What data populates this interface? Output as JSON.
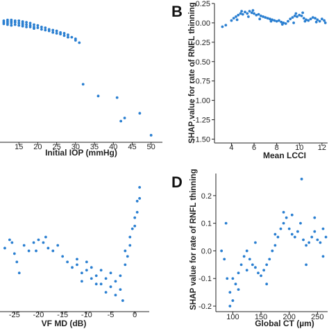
{
  "point_color": "#2a7fd1",
  "chart_data": [
    {
      "id": "A",
      "type": "scatter",
      "panel_letter": "",
      "xlabel": "Initial IOP (mmHg)",
      "ylabel": "",
      "xlim": [
        10,
        53
      ],
      "ylim": [
        -1.52,
        0.25
      ],
      "xticks": [
        15,
        20,
        25,
        30,
        35,
        40,
        45,
        50
      ],
      "yticks": [],
      "points": [
        [
          11,
          0.03
        ],
        [
          11,
          0.01
        ],
        [
          11,
          -0.01
        ],
        [
          12,
          0.04
        ],
        [
          12,
          0.02
        ],
        [
          12,
          0.0
        ],
        [
          12,
          -0.02
        ],
        [
          13,
          0.04
        ],
        [
          13,
          0.02
        ],
        [
          13,
          0.0
        ],
        [
          13,
          -0.03
        ],
        [
          14,
          0.03
        ],
        [
          14,
          0.01
        ],
        [
          14,
          -0.02
        ],
        [
          15,
          0.03
        ],
        [
          15,
          0.0
        ],
        [
          15,
          -0.03
        ],
        [
          16,
          0.02
        ],
        [
          16,
          0.0
        ],
        [
          16,
          -0.02
        ],
        [
          16,
          -0.04
        ],
        [
          17,
          0.01
        ],
        [
          17,
          -0.02
        ],
        [
          17,
          -0.05
        ],
        [
          18,
          0.0
        ],
        [
          18,
          -0.03
        ],
        [
          18,
          -0.05
        ],
        [
          19,
          -0.02
        ],
        [
          19,
          -0.05
        ],
        [
          19,
          -0.07
        ],
        [
          20,
          -0.03
        ],
        [
          20,
          -0.06
        ],
        [
          21,
          -0.05
        ],
        [
          21,
          -0.08
        ],
        [
          22,
          -0.06
        ],
        [
          22,
          -0.09
        ],
        [
          23,
          -0.08
        ],
        [
          23,
          -0.1
        ],
        [
          24,
          -0.09
        ],
        [
          24,
          -0.12
        ],
        [
          25,
          -0.1
        ],
        [
          25,
          -0.13
        ],
        [
          26,
          -0.12
        ],
        [
          26,
          -0.14
        ],
        [
          27,
          -0.13
        ],
        [
          27,
          -0.16
        ],
        [
          28,
          -0.15
        ],
        [
          28,
          -0.18
        ],
        [
          29,
          -0.18
        ],
        [
          30,
          -0.2
        ],
        [
          30,
          -0.22
        ],
        [
          31,
          -0.25
        ],
        [
          32,
          -0.78
        ],
        [
          36,
          -0.93
        ],
        [
          41,
          -0.95
        ],
        [
          42,
          -1.25
        ],
        [
          43,
          -1.21
        ],
        [
          47,
          -1.15
        ],
        [
          50,
          -1.43
        ]
      ]
    },
    {
      "id": "B",
      "type": "scatter",
      "panel_letter": "B",
      "xlabel": "Mean LCCI",
      "ylabel": "SHAP value for rate of RNFL thinning",
      "xlim": [
        2.5,
        12.5
      ],
      "ylim": [
        -1.55,
        0.25
      ],
      "xticks": [
        4,
        6,
        8,
        10,
        12
      ],
      "yticks": [
        0.25,
        0.0,
        -0.25,
        -0.5,
        -0.75,
        -1.0,
        -1.25,
        -1.5
      ],
      "ytick_labels": [
        "0.25",
        "0.00",
        "-0.25",
        "-0.50",
        "-0.75",
        "-1.00",
        "-1.25",
        "-1.50"
      ],
      "points": [
        [
          3.2,
          -0.05
        ],
        [
          3.5,
          -0.03
        ],
        [
          4.0,
          0.03
        ],
        [
          4.2,
          0.06
        ],
        [
          4.4,
          0.08
        ],
        [
          4.6,
          0.1
        ],
        [
          4.8,
          0.12
        ],
        [
          5.0,
          0.11
        ],
        [
          5.2,
          0.14
        ],
        [
          5.4,
          0.12
        ],
        [
          5.6,
          0.15
        ],
        [
          5.8,
          0.13
        ],
        [
          6.0,
          0.12
        ],
        [
          6.2,
          0.1
        ],
        [
          6.4,
          0.11
        ],
        [
          6.6,
          0.09
        ],
        [
          6.8,
          0.08
        ],
        [
          7.0,
          0.07
        ],
        [
          7.2,
          0.06
        ],
        [
          7.4,
          0.05
        ],
        [
          7.6,
          0.04
        ],
        [
          7.8,
          0.03
        ],
        [
          8.0,
          0.02
        ],
        [
          8.2,
          0.03
        ],
        [
          8.4,
          0.01
        ],
        [
          8.6,
          0.0
        ],
        [
          8.8,
          -0.01
        ],
        [
          9.0,
          0.02
        ],
        [
          9.2,
          0.05
        ],
        [
          9.4,
          0.07
        ],
        [
          9.6,
          0.09
        ],
        [
          9.8,
          0.08
        ],
        [
          10.0,
          0.1
        ],
        [
          10.2,
          0.09
        ],
        [
          10.4,
          0.06
        ],
        [
          10.6,
          0.04
        ],
        [
          10.8,
          0.03
        ],
        [
          11.0,
          0.05
        ],
        [
          11.2,
          0.07
        ],
        [
          11.4,
          0.06
        ],
        [
          11.6,
          0.04
        ],
        [
          11.8,
          0.02
        ],
        [
          12.0,
          0.05
        ],
        [
          12.2,
          0.03
        ],
        [
          4.5,
          0.04
        ],
        [
          5.5,
          0.08
        ],
        [
          6.5,
          0.05
        ],
        [
          7.5,
          0.02
        ],
        [
          8.5,
          -0.02
        ],
        [
          9.5,
          0.0
        ],
        [
          10.5,
          0.02
        ],
        [
          11.5,
          0.01
        ],
        [
          12.3,
          0.0
        ],
        [
          4.9,
          0.15
        ],
        [
          5.9,
          0.16
        ],
        [
          9.7,
          0.12
        ],
        [
          10.3,
          0.13
        ]
      ]
    },
    {
      "id": "C",
      "type": "scatter",
      "panel_letter": "",
      "xlabel": "VF MD (dB)",
      "ylabel": "",
      "xlim": [
        -28,
        3
      ],
      "ylim": [
        -0.22,
        0.28
      ],
      "xticks": [
        -25,
        -20,
        -15,
        -10,
        -5,
        0
      ],
      "yticks": [],
      "points": [
        [
          -27,
          0.01
        ],
        [
          -26,
          0.04
        ],
        [
          -25,
          -0.01
        ],
        [
          -24.5,
          -0.04
        ],
        [
          -24,
          -0.08
        ],
        [
          -23,
          0.02
        ],
        [
          -22,
          0.0
        ],
        [
          -21,
          0.03
        ],
        [
          -20,
          0.04
        ],
        [
          -19,
          0.03
        ],
        [
          -18,
          0.01
        ],
        [
          -17,
          0.0
        ],
        [
          -16,
          0.02
        ],
        [
          -15,
          -0.02
        ],
        [
          -14,
          -0.04
        ],
        [
          -13,
          -0.06
        ],
        [
          -12,
          -0.05
        ],
        [
          -11,
          -0.08
        ],
        [
          -10,
          -0.07
        ],
        [
          -9,
          -0.1
        ],
        [
          -8,
          -0.09
        ],
        [
          -7,
          -0.12
        ],
        [
          -6,
          -0.1
        ],
        [
          -5,
          -0.13
        ],
        [
          -4,
          -0.11
        ],
        [
          -3,
          -0.14
        ],
        [
          -2.5,
          -0.18
        ],
        [
          -2,
          -0.05
        ],
        [
          -1.5,
          -0.02
        ],
        [
          -1,
          0.02
        ],
        [
          -0.5,
          0.08
        ],
        [
          0,
          0.12
        ],
        [
          0.5,
          0.18
        ],
        [
          1,
          0.23
        ],
        [
          -12,
          -0.03
        ],
        [
          -11,
          -0.11
        ],
        [
          -10,
          -0.04
        ],
        [
          -9,
          -0.06
        ],
        [
          -8,
          -0.12
        ],
        [
          -7,
          -0.07
        ],
        [
          -6,
          -0.15
        ],
        [
          -5,
          -0.08
        ],
        [
          -4,
          -0.16
        ],
        [
          -3,
          -0.09
        ],
        [
          -2,
          0.0
        ],
        [
          -1,
          0.05
        ],
        [
          0,
          0.09
        ],
        [
          0.5,
          0.14
        ],
        [
          1,
          0.19
        ],
        [
          -25.5,
          0.03
        ],
        [
          -20.5,
          0.0
        ],
        [
          -18.5,
          0.05
        ]
      ]
    },
    {
      "id": "D",
      "type": "scatter",
      "panel_letter": "D",
      "xlabel": "Global CT (µm)",
      "ylabel": "SHAP value for rate of RNFL thinning",
      "xlim": [
        70,
        268
      ],
      "ylim": [
        -0.22,
        0.28
      ],
      "xticks": [
        100,
        150,
        200,
        250
      ],
      "yticks": [
        0.2,
        0.1,
        0.0,
        -0.1,
        -0.2
      ],
      "ytick_labels": [
        "0.2",
        "0.1",
        "0.0",
        "-0.1",
        "-0.2"
      ],
      "points": [
        [
          80,
          0.0
        ],
        [
          85,
          -0.03
        ],
        [
          90,
          -0.1
        ],
        [
          95,
          -0.15
        ],
        [
          100,
          -0.18
        ],
        [
          105,
          -0.12
        ],
        [
          110,
          -0.08
        ],
        [
          115,
          -0.05
        ],
        [
          120,
          -0.02
        ],
        [
          125,
          0.0
        ],
        [
          130,
          -0.03
        ],
        [
          135,
          -0.05
        ],
        [
          140,
          -0.06
        ],
        [
          145,
          -0.08
        ],
        [
          150,
          -0.09
        ],
        [
          155,
          -0.07
        ],
        [
          160,
          -0.05
        ],
        [
          165,
          -0.03
        ],
        [
          170,
          0.0
        ],
        [
          175,
          0.02
        ],
        [
          180,
          0.05
        ],
        [
          185,
          0.08
        ],
        [
          190,
          0.1
        ],
        [
          195,
          0.12
        ],
        [
          200,
          0.08
        ],
        [
          205,
          0.06
        ],
        [
          210,
          0.05
        ],
        [
          215,
          0.07
        ],
        [
          220,
          0.1
        ],
        [
          225,
          0.04
        ],
        [
          230,
          0.02
        ],
        [
          235,
          0.03
        ],
        [
          240,
          0.05
        ],
        [
          245,
          0.07
        ],
        [
          250,
          0.04
        ],
        [
          255,
          0.03
        ],
        [
          260,
          0.08
        ],
        [
          265,
          0.05
        ],
        [
          222,
          0.26
        ],
        [
          88,
          0.1
        ],
        [
          95,
          -0.2
        ],
        [
          100,
          -0.1
        ],
        [
          110,
          -0.14
        ],
        [
          125,
          -0.07
        ],
        [
          140,
          0.03
        ],
        [
          160,
          -0.12
        ],
        [
          175,
          0.06
        ],
        [
          190,
          0.14
        ],
        [
          205,
          0.13
        ],
        [
          230,
          -0.05
        ],
        [
          245,
          0.12
        ],
        [
          260,
          -0.02
        ]
      ]
    }
  ]
}
